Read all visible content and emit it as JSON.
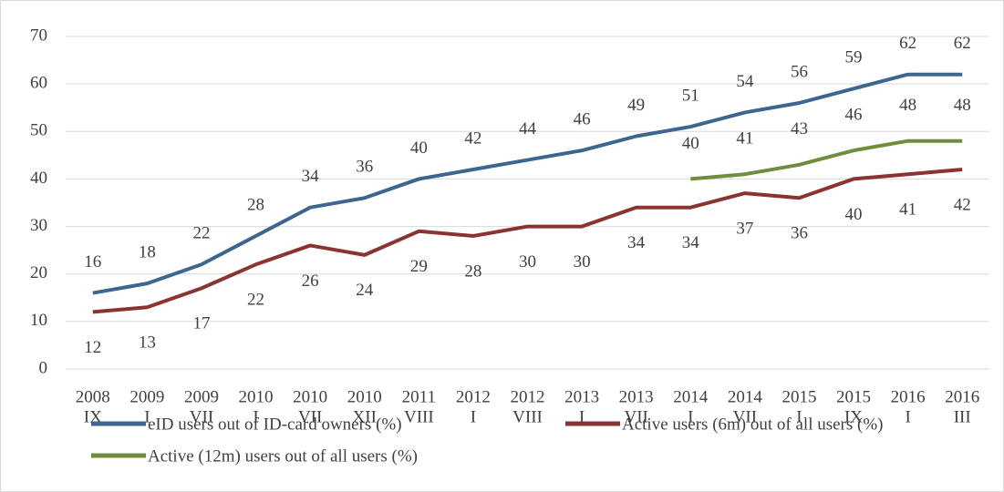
{
  "chart_data": {
    "type": "line",
    "categories": [
      [
        "2008",
        "IX"
      ],
      [
        "2009",
        "I"
      ],
      [
        "2009",
        "VII"
      ],
      [
        "2010",
        "I"
      ],
      [
        "2010",
        "VII"
      ],
      [
        "2010",
        "XII"
      ],
      [
        "2011",
        "VIII"
      ],
      [
        "2012",
        "I"
      ],
      [
        "2012",
        "VIII"
      ],
      [
        "2013",
        "I"
      ],
      [
        "2013",
        "VII"
      ],
      [
        "2014",
        "I"
      ],
      [
        "2014",
        "VII"
      ],
      [
        "2015",
        "I"
      ],
      [
        "2015",
        "IX"
      ],
      [
        "2016",
        "I"
      ],
      [
        "2016",
        "III"
      ]
    ],
    "series": [
      {
        "name": "eID users out of ID-card owners (%)",
        "color": "#3c6690",
        "values": [
          16,
          18,
          22,
          28,
          34,
          36,
          40,
          42,
          44,
          46,
          49,
          51,
          54,
          56,
          59,
          62,
          62
        ]
      },
      {
        "name": "Active users (6m) out of all users (%)",
        "color": "#8b3331",
        "values": [
          12,
          13,
          17,
          22,
          26,
          24,
          29,
          28,
          30,
          30,
          34,
          34,
          37,
          36,
          40,
          41,
          42
        ]
      },
      {
        "name": "Active (12m) users out of all users (%)",
        "color": "#6f8e3b",
        "values": [
          null,
          null,
          null,
          null,
          null,
          null,
          null,
          null,
          null,
          null,
          null,
          40,
          41,
          43,
          46,
          48,
          48
        ]
      }
    ],
    "ylim": [
      0,
      70
    ],
    "yticks": [
      0,
      10,
      20,
      30,
      40,
      50,
      60,
      70
    ],
    "grid": true,
    "legend": "bottom"
  }
}
